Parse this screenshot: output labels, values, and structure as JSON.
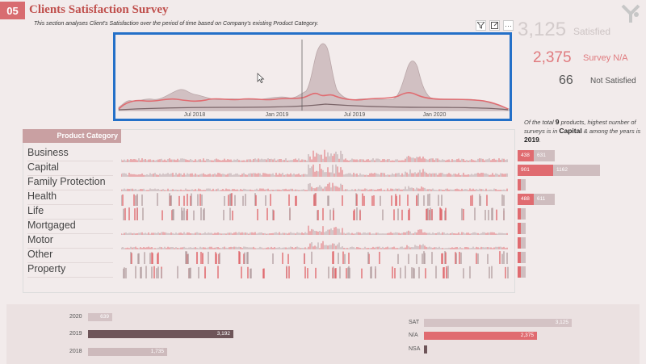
{
  "header": {
    "section_number": "05",
    "title": "Clients Satisfaction Survey",
    "subtitle": "This section analyses Client's Satisfaction over the period of time based on Company's existing Product Category."
  },
  "toolbar": {
    "filter_icon": "filter-icon",
    "focus_icon": "focus-mode-icon",
    "more_icon": "more-options-icon",
    "more_label": "···"
  },
  "kpis": {
    "satisfied": {
      "value": "3,125",
      "label": "Satisfied"
    },
    "survey_na": {
      "value": "2,375",
      "label": "Survey N/A"
    },
    "not_satisfied": {
      "value": "66",
      "label": "Not Satisfied"
    }
  },
  "summary": {
    "text1": "Of the total",
    "total": "9",
    "text2": "products, highest number of surveys is in",
    "category": "Capital",
    "text3": "& among the years is",
    "year": "2019",
    "text4": "."
  },
  "chart_data": {
    "type": "area",
    "x_ticks": [
      "Jul 2018",
      "Jan 2019",
      "Jul 2019",
      "Jan 2020"
    ],
    "colors": {
      "grey": "#c9b4b6",
      "red": "#e06b70",
      "dark": "#7a6468"
    }
  },
  "categories": {
    "header": "Product Category",
    "items": [
      "Business",
      "Capital",
      "Family Protection",
      "Health",
      "Life",
      "Mortgaged",
      "Motor",
      "Other",
      "Property"
    ]
  },
  "right_bars": [
    {
      "a": "438",
      "b": "631"
    },
    {
      "a": "901",
      "b": "1162"
    },
    {
      "a": "",
      "b": ""
    },
    {
      "a": "488",
      "b": "611"
    },
    {
      "a": "",
      "b": ""
    },
    {
      "a": "",
      "b": ""
    },
    {
      "a": "",
      "b": ""
    },
    {
      "a": "",
      "b": ""
    },
    {
      "a": "",
      "b": ""
    }
  ],
  "years_chart": {
    "rows": [
      {
        "label": "2020",
        "value": "639"
      },
      {
        "label": "2019",
        "value": "3,192"
      },
      {
        "label": "2018",
        "value": "1,735"
      }
    ]
  },
  "status_chart": {
    "rows": [
      {
        "label": "SAT",
        "value": "3,125"
      },
      {
        "label": "N/A",
        "value": "2,375"
      },
      {
        "label": "NSA",
        "value": ""
      }
    ]
  }
}
